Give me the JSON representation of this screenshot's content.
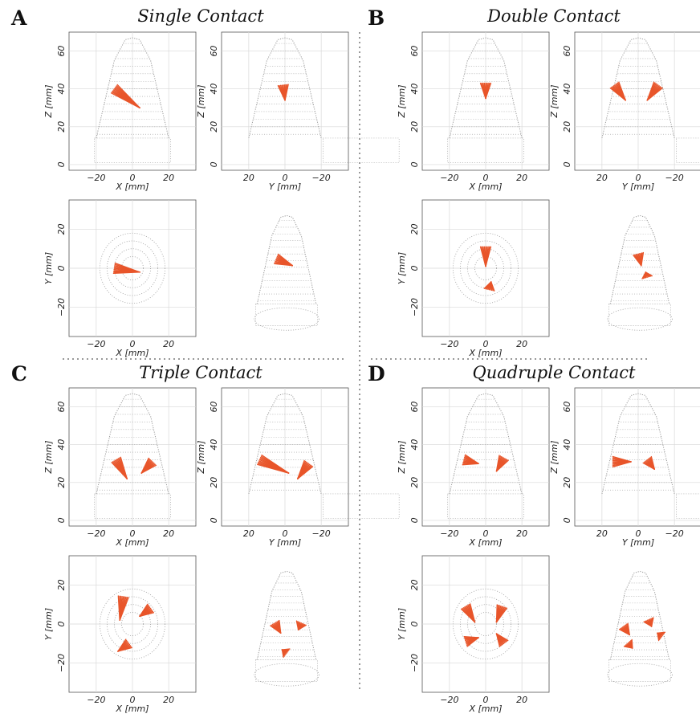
{
  "figure": {
    "colors": {
      "arrow": "#e8552a",
      "mesh": "#9a9a9a",
      "grid": "#d8d8d8",
      "frame": "#555555"
    },
    "panels": [
      {
        "letter": "A",
        "title": "Single Contact"
      },
      {
        "letter": "B",
        "title": "Double Contact"
      },
      {
        "letter": "C",
        "title": "Triple Contact"
      },
      {
        "letter": "D",
        "title": "Quadruple Contact"
      }
    ]
  },
  "chart_data": [
    {
      "type": "scatter",
      "panel": "A",
      "title": "Single Contact",
      "subplots": [
        {
          "view": "xz",
          "xlabel": "X [mm]",
          "ylabel": "Z [mm]",
          "xticks": [
            "−20",
            "0",
            "20"
          ],
          "yticks": [
            "0",
            "20",
            "40",
            "60"
          ],
          "xlim": [
            -35,
            35
          ],
          "ylim": [
            -3,
            70
          ],
          "contacts": [
            {
              "x": -10,
              "y": 40,
              "dx": 14,
              "dy": -10
            }
          ]
        },
        {
          "view": "yz",
          "xlabel": "Y [mm]",
          "ylabel": "Z [mm]",
          "xticks": [
            "20",
            "0",
            "−20"
          ],
          "yticks": [
            "0",
            "20",
            "40",
            "60"
          ],
          "xlim": [
            35,
            -35
          ],
          "ylim": [
            -3,
            70
          ],
          "contacts": [
            {
              "x": 1,
              "y": 42,
              "dx": -1,
              "dy": -8
            }
          ]
        },
        {
          "view": "xy",
          "xlabel": "X [mm]",
          "ylabel": "Y [mm]",
          "xticks": [
            "−20",
            "0",
            "20"
          ],
          "yticks": [
            "−20",
            "0",
            "20"
          ],
          "xlim": [
            -35,
            35
          ],
          "ylim": [
            -35,
            35
          ],
          "contacts": [
            {
              "x": -10,
              "y": 0,
              "dx": 14,
              "dy": -2
            }
          ]
        },
        {
          "view": "3d",
          "contacts": [
            {
              "x": -7,
              "y": 41,
              "dx": 11,
              "dy": -4
            }
          ]
        }
      ]
    },
    {
      "type": "scatter",
      "panel": "B",
      "title": "Double Contact",
      "subplots": [
        {
          "view": "xz",
          "xlabel": "X [mm]",
          "ylabel": "Z [mm]",
          "xticks": [
            "−20",
            "0",
            "20"
          ],
          "yticks": [
            "0",
            "20",
            "40",
            "60"
          ],
          "xlim": [
            -35,
            35
          ],
          "ylim": [
            -3,
            70
          ],
          "contacts": [
            {
              "x": 0,
              "y": 43,
              "dx": 0,
              "dy": -8
            }
          ]
        },
        {
          "view": "yz",
          "xlabel": "Y [mm]",
          "ylabel": "Z [mm]",
          "xticks": [
            "20",
            "0",
            "−20"
          ],
          "yticks": [
            "0",
            "20",
            "40",
            "60"
          ],
          "xlim": [
            35,
            -35
          ],
          "ylim": [
            -3,
            70
          ],
          "contacts": [
            {
              "x": 13,
              "y": 42,
              "dx": -6,
              "dy": -8
            },
            {
              "x": -11,
              "y": 42,
              "dx": 6,
              "dy": -8
            }
          ]
        },
        {
          "view": "xy",
          "xlabel": "X [mm]",
          "ylabel": "Y [mm]",
          "xticks": [
            "−20",
            "0",
            "20"
          ],
          "yticks": [
            "−20",
            "0",
            "20"
          ],
          "xlim": [
            -35,
            35
          ],
          "ylim": [
            -35,
            35
          ],
          "contacts": [
            {
              "x": 0,
              "y": 11,
              "dx": 0,
              "dy": -10
            },
            {
              "x": 2,
              "y": -11,
              "dx": 1,
              "dy": 4
            }
          ]
        },
        {
          "view": "3d",
          "contacts": [
            {
              "x": -1,
              "y": 44,
              "dx": 2,
              "dy": -7
            },
            {
              "x": 5,
              "y": 30,
              "dx": -1,
              "dy": 3
            }
          ]
        }
      ]
    },
    {
      "type": "scatter",
      "panel": "C",
      "title": "Triple Contact",
      "subplots": [
        {
          "view": "xz",
          "xlabel": "X [mm]",
          "ylabel": "Z [mm]",
          "xticks": [
            "−20",
            "0",
            "20"
          ],
          "yticks": [
            "0",
            "20",
            "40",
            "60"
          ],
          "xlim": [
            -35,
            35
          ],
          "ylim": [
            -3,
            70
          ],
          "contacts": [
            {
              "x": -9,
              "y": 32,
              "dx": 6,
              "dy": -10
            },
            {
              "x": 11,
              "y": 31,
              "dx": -6,
              "dy": -6
            }
          ]
        },
        {
          "view": "yz",
          "xlabel": "Y [mm]",
          "ylabel": "Z [mm]",
          "xticks": [
            "20",
            "0",
            "−20"
          ],
          "yticks": [
            "0",
            "20",
            "40",
            "60"
          ],
          "xlim": [
            35,
            -35
          ],
          "ylim": [
            -3,
            70
          ],
          "contacts": [
            {
              "x": 14,
              "y": 32,
              "dx": -16,
              "dy": -7
            },
            {
              "x": -13,
              "y": 30,
              "dx": 6,
              "dy": -8
            }
          ]
        },
        {
          "view": "xy",
          "xlabel": "X [mm]",
          "ylabel": "Y [mm]",
          "xticks": [
            "−20",
            "0",
            "20"
          ],
          "yticks": [
            "−20",
            "0",
            "20"
          ],
          "xlim": [
            -35,
            35
          ],
          "ylim": [
            -35,
            35
          ],
          "contacts": [
            {
              "x": -5,
              "y": 14,
              "dx": -2,
              "dy": -12
            },
            {
              "x": 10,
              "y": 8,
              "dx": -6,
              "dy": -4
            },
            {
              "x": -2,
              "y": -10,
              "dx": -6,
              "dy": -4
            }
          ]
        },
        {
          "view": "3d",
          "contacts": [
            {
              "x": -8,
              "y": 36,
              "dx": 4,
              "dy": -6
            },
            {
              "x": 10,
              "y": 36,
              "dx": -2,
              "dy": -4
            },
            {
              "x": 0,
              "y": 18,
              "dx": -3,
              "dy": 2
            }
          ]
        }
      ]
    },
    {
      "type": "scatter",
      "panel": "D",
      "title": "Quadruple Contact",
      "subplots": [
        {
          "view": "xz",
          "xlabel": "X [mm]",
          "ylabel": "Z [mm]",
          "xticks": [
            "−20",
            "0",
            "20"
          ],
          "yticks": [
            "0",
            "20",
            "40",
            "60"
          ],
          "xlim": [
            -35,
            35
          ],
          "ylim": [
            -3,
            70
          ],
          "contacts": [
            {
              "x": -12,
              "y": 32,
              "dx": 8,
              "dy": -2
            },
            {
              "x": 10,
              "y": 33,
              "dx": -4,
              "dy": -7
            }
          ]
        },
        {
          "view": "yz",
          "xlabel": "Y [mm]",
          "ylabel": "Z [mm]",
          "xticks": [
            "20",
            "0",
            "−20"
          ],
          "yticks": [
            "0",
            "20",
            "40",
            "60"
          ],
          "xlim": [
            35,
            -35
          ],
          "ylim": [
            -3,
            70
          ],
          "contacts": [
            {
              "x": 14,
              "y": 31,
              "dx": -10,
              "dy": 0
            },
            {
              "x": -5,
              "y": 32,
              "dx": -4,
              "dy": -5
            }
          ]
        },
        {
          "view": "xy",
          "xlabel": "X [mm]",
          "ylabel": "Y [mm]",
          "xticks": [
            "−20",
            "0",
            "20"
          ],
          "yticks": [
            "−20",
            "0",
            "20"
          ],
          "xlim": [
            -35,
            35
          ],
          "ylim": [
            -35,
            35
          ],
          "contacts": [
            {
              "x": -11,
              "y": 9,
              "dx": 5,
              "dy": -8
            },
            {
              "x": 9,
              "y": 9,
              "dx": -3,
              "dy": -8
            },
            {
              "x": -11,
              "y": -9,
              "dx": 7,
              "dy": 2
            },
            {
              "x": 10,
              "y": -10,
              "dx": -4,
              "dy": 5
            }
          ]
        },
        {
          "view": "3d",
          "contacts": [
            {
              "x": -11,
              "y": 34,
              "dx": 4,
              "dy": -5
            },
            {
              "x": 6,
              "y": 38,
              "dx": 2,
              "dy": -4
            },
            {
              "x": 15,
              "y": 28,
              "dx": -3,
              "dy": 2
            },
            {
              "x": -8,
              "y": 24,
              "dx": 3,
              "dy": -3
            }
          ]
        }
      ]
    }
  ]
}
